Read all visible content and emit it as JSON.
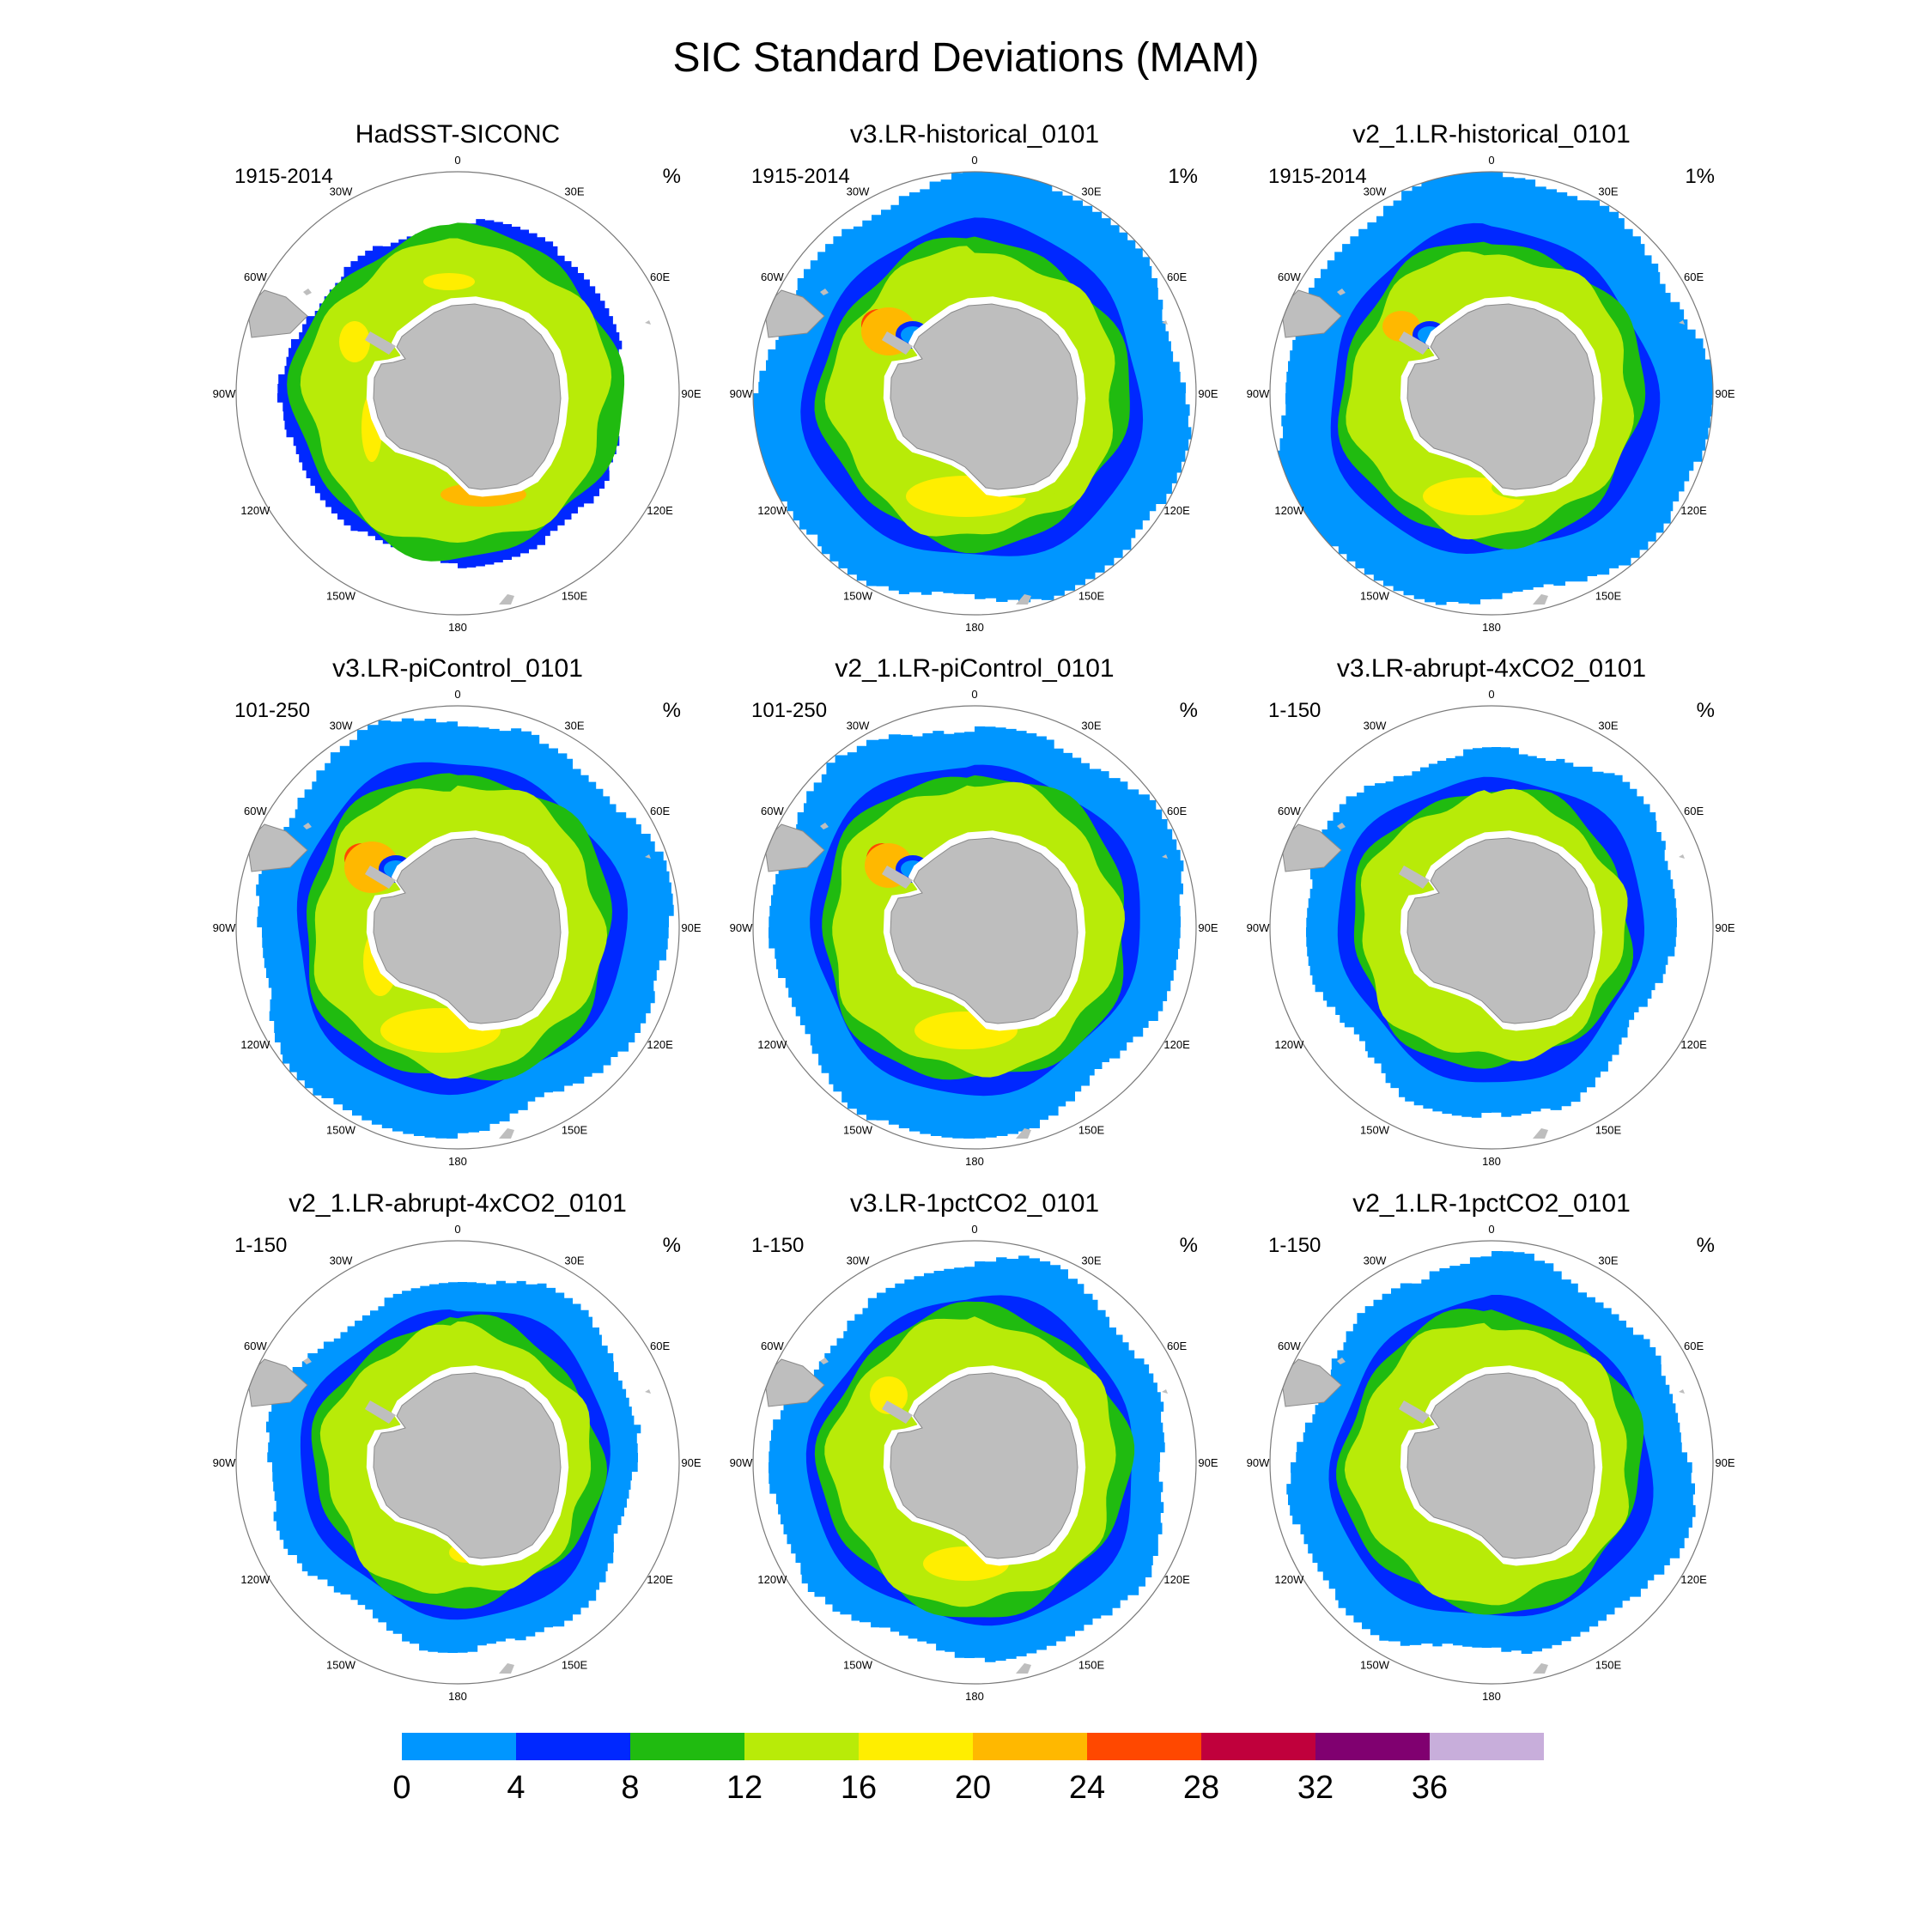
{
  "figure": {
    "title": "SIC Standard Deviations (MAM)"
  },
  "chart_data": [
    {
      "type": "heatmap",
      "projection": "south-polar-stereographic",
      "title": "HadSST-SICONC",
      "left_label": "1915-2014",
      "right_label": "%",
      "variant": "obs"
    },
    {
      "type": "heatmap",
      "projection": "south-polar-stereographic",
      "title": "v3.LR-historical_0101",
      "left_label": "1915-2014",
      "right_label": "1%",
      "variant": "v3-hist"
    },
    {
      "type": "heatmap",
      "projection": "south-polar-stereographic",
      "title": "v2_1.LR-historical_0101",
      "left_label": "1915-2014",
      "right_label": "1%",
      "variant": "v2-hist"
    },
    {
      "type": "heatmap",
      "projection": "south-polar-stereographic",
      "title": "v3.LR-piControl_0101",
      "left_label": "101-250",
      "right_label": "%",
      "variant": "v3-pi"
    },
    {
      "type": "heatmap",
      "projection": "south-polar-stereographic",
      "title": "v2_1.LR-piControl_0101",
      "left_label": "101-250",
      "right_label": "%",
      "variant": "v2-pi"
    },
    {
      "type": "heatmap",
      "projection": "south-polar-stereographic",
      "title": "v3.LR-abrupt-4xCO2_0101",
      "left_label": "1-150",
      "right_label": "%",
      "variant": "v3-4x"
    },
    {
      "type": "heatmap",
      "projection": "south-polar-stereographic",
      "title": "v2_1.LR-abrupt-4xCO2_0101",
      "left_label": "1-150",
      "right_label": "%",
      "variant": "v2-4x"
    },
    {
      "type": "heatmap",
      "projection": "south-polar-stereographic",
      "title": "v3.LR-1pctCO2_0101",
      "left_label": "1-150",
      "right_label": "%",
      "variant": "v3-1pct"
    },
    {
      "type": "heatmap",
      "projection": "south-polar-stereographic",
      "title": "v2_1.LR-1pctCO2_0101",
      "left_label": "1-150",
      "right_label": "%",
      "variant": "v2-1pct"
    }
  ],
  "longitude_labels": [
    "0",
    "30E",
    "60E",
    "90E",
    "120E",
    "150E",
    "180",
    "150W",
    "120W",
    "90W",
    "60W",
    "30W"
  ],
  "colorbar": {
    "ticks": [
      "0",
      "4",
      "8",
      "12",
      "16",
      "20",
      "24",
      "28",
      "32",
      "36"
    ],
    "colors": [
      "#0096ff",
      "#0028ff",
      "#20bb10",
      "#b8eb08",
      "#ffee00",
      "#ffb800",
      "#ff4800",
      "#c0003c",
      "#800070",
      "#c8aedb"
    ]
  },
  "colors": {
    "land": "#bebebe",
    "ice_shelf": "#ffffff",
    "grid": "#7a7a7a"
  }
}
